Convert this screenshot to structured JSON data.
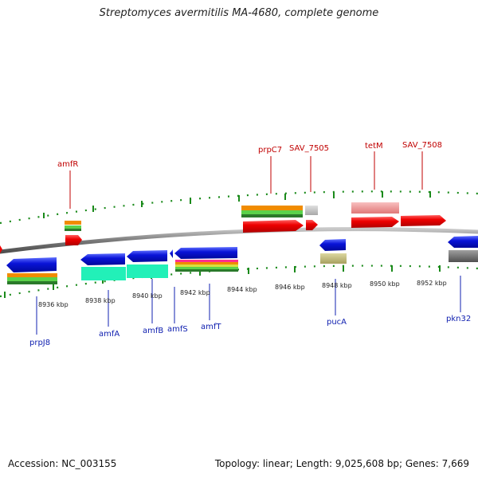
{
  "header": {
    "title": "Streptomyces avermitilis MA-4680, complete genome"
  },
  "footer": {
    "accession": "Accession: NC_003155",
    "summary": "Topology: linear; Length: 9,025,608 bp; Genes: 7,669"
  },
  "ruler_ticks": [
    "8936 kbp",
    "8938 kbp",
    "8940 kbp",
    "8942 kbp",
    "8944 kbp",
    "8946 kbp",
    "8948 kbp",
    "8950 kbp",
    "8952 kbp"
  ],
  "forward_labels": [
    "amfR",
    "prpC7",
    "SAV_7505",
    "tetM",
    "SAV_7508"
  ],
  "reverse_labels": [
    "prpJ8",
    "amfA",
    "amfB",
    "amfS",
    "amfT",
    "pucA",
    "pkn32"
  ],
  "colors": {
    "forward_gene": "#ee0000",
    "reverse_gene": "#0a14d8",
    "forward_label": "#c00000",
    "reverse_label": "#1020b0",
    "backbone": "#808080",
    "tick": "#1a8a1a",
    "orange_band": "#f08c00",
    "green_band": "#5bd24a",
    "cyan_band": "#22f0b8"
  }
}
